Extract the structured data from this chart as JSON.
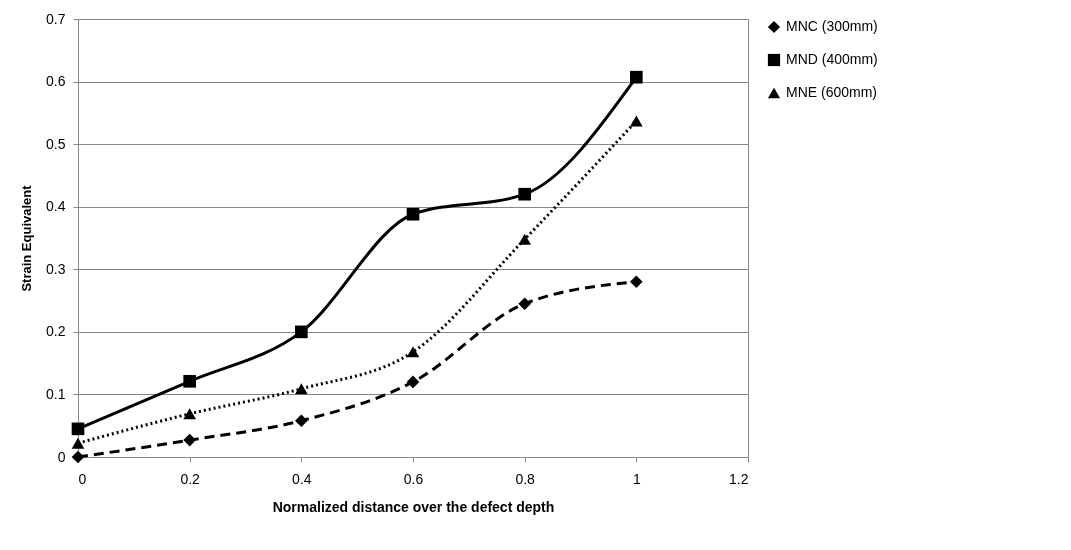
{
  "chart_data": {
    "type": "line",
    "xlabel": "Normalized distance over the defect depth",
    "ylabel": "Strain Equivalent",
    "x": [
      0,
      0.2,
      0.4,
      0.6,
      0.8,
      1
    ],
    "series": [
      {
        "name": "MNC (300mm)",
        "color": "#000000",
        "marker": "diamond",
        "line_style": "dashed",
        "values": [
          0,
          0.027,
          0.058,
          0.12,
          0.245,
          0.28
        ]
      },
      {
        "name": "MND (400mm)",
        "color": "#000000",
        "marker": "square",
        "line_style": "solid",
        "values": [
          0.045,
          0.121,
          0.2,
          0.388,
          0.42,
          0.607
        ]
      },
      {
        "name": "MNE (600mm)",
        "color": "#000000",
        "marker": "triangle",
        "line_style": "dotted",
        "values": [
          0.022,
          0.069,
          0.109,
          0.168,
          0.348,
          0.537
        ]
      }
    ],
    "xlim": [
      0,
      1.2
    ],
    "xticks": [
      0,
      0.2,
      0.4,
      0.6,
      0.8,
      1,
      1.2
    ],
    "ylim": [
      0,
      0.7
    ],
    "yticks": [
      0,
      0.1,
      0.2,
      0.3,
      0.4,
      0.5,
      0.6,
      0.7
    ],
    "grid": "y",
    "legend": "right"
  }
}
